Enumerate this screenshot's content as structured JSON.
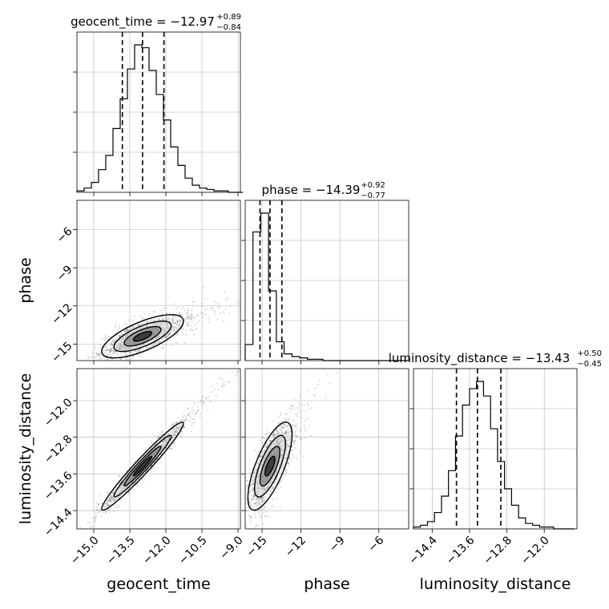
{
  "chart_data": {
    "type": "corner",
    "parameters": [
      "geocent_time",
      "phase",
      "luminosity_distance"
    ],
    "titles": [
      {
        "param": "geocent_time",
        "main": "geocent_time = −12.97",
        "plus": "+0.89",
        "minus": "−0.84"
      },
      {
        "param": "phase",
        "main": "phase = −14.39",
        "plus": "+0.92",
        "minus": "−0.77"
      },
      {
        "param": "luminosity_distance",
        "main": "luminosity_distance = −13.43",
        "plus": "+0.50",
        "minus": "−0.45"
      }
    ],
    "axes": {
      "geocent_time": {
        "range": [
          -15.7,
          -8.9
        ],
        "ticks": [
          -15.0,
          -13.5,
          -12.0,
          -10.5,
          -9.0
        ],
        "tick_labels": [
          "−15.0",
          "−13.5",
          "−12.0",
          "−10.5",
          "−9.0"
        ]
      },
      "phase": {
        "range": [
          -16.3,
          -3.7
        ],
        "ticks": [
          -15,
          -12,
          -9,
          -6
        ],
        "tick_labels": [
          "−15",
          "−12",
          "−9",
          "−6"
        ]
      },
      "luminosity_distance": {
        "range": [
          -14.8,
          -11.3
        ],
        "ticks": [
          -14.4,
          -13.6,
          -12.8,
          -12.0
        ],
        "tick_labels": [
          "−14.4",
          "−13.6",
          "−12.8",
          "−12.0"
        ]
      }
    },
    "histograms": [
      {
        "param": "geocent_time",
        "bins": [
          -15.7,
          -15.4,
          -15.1,
          -14.8,
          -14.5,
          -14.2,
          -13.9,
          -13.6,
          -13.3,
          -13.0,
          -12.7,
          -12.4,
          -12.1,
          -11.8,
          -11.5,
          -11.2,
          -10.9,
          -10.6,
          -10.3,
          -10.0,
          -9.7,
          -9.4,
          -9.1,
          -8.8
        ],
        "counts": [
          1,
          3,
          7,
          16,
          26,
          45,
          66,
          87,
          104,
          102,
          86,
          69,
          51,
          32,
          19,
          10,
          5,
          3,
          2,
          1,
          1,
          0,
          0
        ]
      },
      {
        "param": "phase",
        "bins": [
          -16.3,
          -15.7,
          -15.1,
          -14.5,
          -13.9,
          -13.3,
          -12.7,
          -12.1,
          -11.5,
          -10.9,
          -10.3,
          -9.7,
          -9.1,
          -8.5,
          -7.9,
          -7.3,
          -6.7,
          -6.1,
          -5.5,
          -4.9,
          -4.3,
          -3.7
        ],
        "counts": [
          12,
          96,
          110,
          52,
          14,
          5,
          3,
          2,
          1,
          1,
          0,
          0,
          0,
          0,
          0,
          0,
          0,
          0,
          0,
          0,
          0
        ]
      },
      {
        "param": "luminosity_distance",
        "bins": [
          -14.8,
          -14.65,
          -14.5,
          -14.35,
          -14.2,
          -14.05,
          -13.9,
          -13.75,
          -13.6,
          -13.45,
          -13.3,
          -13.15,
          -13.0,
          -12.85,
          -12.7,
          -12.55,
          -12.4,
          -12.25,
          -12.1,
          -11.95,
          -11.8,
          -11.65,
          -11.5,
          -11.35
        ],
        "counts": [
          1,
          2,
          4,
          9,
          18,
          32,
          51,
          68,
          77,
          81,
          73,
          55,
          37,
          22,
          13,
          6,
          3,
          2,
          1,
          1,
          0,
          0,
          0
        ]
      }
    ],
    "quantiles": {
      "geocent_time": [
        -13.81,
        -12.97,
        -12.08
      ],
      "phase": [
        -15.16,
        -14.39,
        -13.47
      ],
      "luminosity_distance": [
        -13.88,
        -13.43,
        -12.93
      ]
    },
    "pairs": [
      {
        "x": "geocent_time",
        "y": "phase",
        "mean": [
          -12.97,
          -14.39
        ],
        "sd": [
          0.85,
          0.85
        ],
        "corr": 0.7
      },
      {
        "x": "geocent_time",
        "y": "luminosity_distance",
        "mean": [
          -12.97,
          -13.43
        ],
        "sd": [
          0.85,
          0.48
        ],
        "corr": 0.97
      },
      {
        "x": "phase",
        "y": "luminosity_distance",
        "mean": [
          -14.39,
          -13.43
        ],
        "sd": [
          0.85,
          0.48
        ],
        "corr": 0.72
      }
    ],
    "grid": true,
    "colors": {
      "line": "#000000",
      "grid": "#b0b0b0",
      "scatter": "#000000"
    }
  }
}
